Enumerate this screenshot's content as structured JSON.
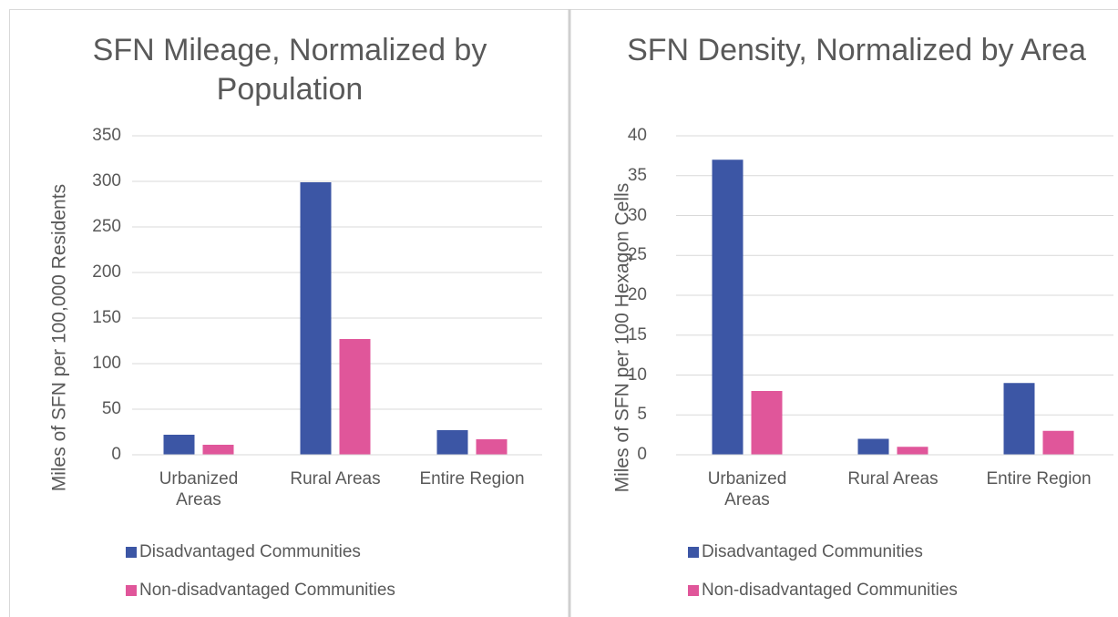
{
  "chart_data": [
    {
      "type": "bar",
      "title": "SFN Mileage, Normalized by Population",
      "y_label": "Miles of SFN per 100,000 Residents",
      "categories": [
        "Urbanized Areas",
        "Rural Areas",
        "Entire Region"
      ],
      "series": [
        {
          "name": "Disadvantaged Communities",
          "color": "#3c56a5",
          "values": [
            22,
            299,
            27
          ]
        },
        {
          "name": "Non-disadvantaged Communities",
          "color": "#e0569a",
          "values": [
            11,
            127,
            17
          ]
        }
      ],
      "ylim": [
        0,
        350
      ],
      "yticks": [
        0,
        50,
        100,
        150,
        200,
        250,
        300,
        350
      ],
      "grid": true,
      "legend": "bottom"
    },
    {
      "type": "bar",
      "title": "SFN Density, Normalized by Area",
      "y_label": "Miles of SFN per 100 Hexagon Cells",
      "categories": [
        "Urbanized Areas",
        "Rural Areas",
        "Entire Region"
      ],
      "series": [
        {
          "name": "Disadvantaged Communities",
          "color": "#3c56a5",
          "values": [
            37,
            2,
            9
          ]
        },
        {
          "name": "Non-disadvantaged Communities",
          "color": "#e0569a",
          "values": [
            8,
            1,
            3
          ]
        }
      ],
      "ylim": [
        0,
        40
      ],
      "yticks": [
        0,
        5,
        10,
        15,
        20,
        25,
        30,
        35,
        40
      ],
      "grid": true,
      "legend": "bottom"
    }
  ]
}
